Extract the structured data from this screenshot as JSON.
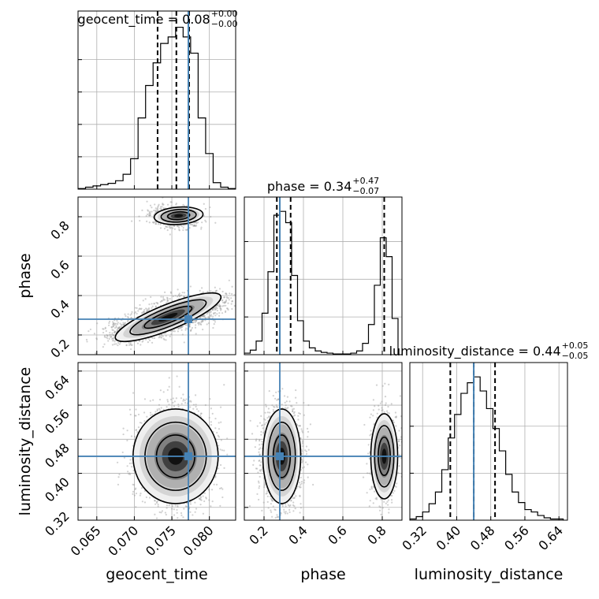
{
  "chart_data": {
    "type": "corner",
    "colors": {
      "truth": "#4682b4",
      "hist": "#000000",
      "grid": "#b0b0b0",
      "scatter": "#aaaaaa"
    },
    "truths": {
      "geocent_time": 0.0772,
      "phase": 0.28,
      "luminosity_distance": 0.44
    },
    "axis_labels": {
      "geocent_time": "geocent_time",
      "phase": "phase",
      "luminosity_distance": "luminosity_distance"
    },
    "ticks": {
      "geocent_time": {
        "values": [
          0.065,
          0.07,
          0.075,
          0.08
        ],
        "labels": [
          "0.065",
          "0.070",
          "0.075",
          "0.080"
        ]
      },
      "phase": {
        "values": [
          0.2,
          0.4,
          0.6,
          0.8
        ],
        "labels": [
          "0.2",
          "0.4",
          "0.6",
          "0.8"
        ]
      },
      "luminosity_distance": {
        "values": [
          0.32,
          0.4,
          0.48,
          0.56,
          0.64
        ],
        "labels": [
          "0.32",
          "0.40",
          "0.48",
          "0.56",
          "0.64"
        ]
      }
    },
    "ranges": {
      "geocent_time": [
        0.0625,
        0.0835
      ],
      "phase": [
        0.1,
        0.9
      ],
      "luminosity_distance": [
        0.29,
        0.66
      ]
    },
    "titles": [
      {
        "param": "geocent_time",
        "text": "geocent_time = 0.08",
        "sup": "+0.00",
        "sub": "−0.00"
      },
      {
        "param": "phase",
        "text": "phase = 0.34",
        "sup": "+0.47",
        "sub": "−0.07"
      },
      {
        "param": "luminosity_distance",
        "text": "luminosity_distance = 0.44",
        "sup": "+0.05",
        "sub": "−0.05"
      }
    ],
    "quantiles": {
      "geocent_time": [
        0.0731,
        0.0756,
        0.0773
      ],
      "phase": [
        0.265,
        0.335,
        0.81
      ],
      "luminosity_distance": [
        0.385,
        0.44,
        0.49
      ]
    },
    "histograms": {
      "geocent_time": {
        "edges": [
          0.0625,
          0.0635,
          0.0645,
          0.0655,
          0.0665,
          0.0675,
          0.0685,
          0.0695,
          0.0705,
          0.0715,
          0.0725,
          0.0735,
          0.0745,
          0.0755,
          0.0765,
          0.0775,
          0.0785,
          0.0795,
          0.0805,
          0.0815,
          0.0825,
          0.0835
        ],
        "counts": [
          1,
          3,
          5,
          7,
          9,
          13,
          23,
          47,
          110,
          160,
          195,
          225,
          235,
          250,
          235,
          210,
          110,
          55,
          10,
          3,
          1
        ]
      },
      "phase": {
        "edges": [
          0.1,
          0.13,
          0.16,
          0.19,
          0.22,
          0.25,
          0.28,
          0.31,
          0.34,
          0.37,
          0.4,
          0.43,
          0.46,
          0.49,
          0.52,
          0.55,
          0.58,
          0.61,
          0.64,
          0.67,
          0.7,
          0.73,
          0.76,
          0.79,
          0.82,
          0.85,
          0.88
        ],
        "counts": [
          2,
          6,
          18,
          55,
          110,
          185,
          190,
          175,
          105,
          45,
          18,
          9,
          5,
          3,
          2,
          1,
          1,
          1,
          2,
          5,
          15,
          40,
          92,
          155,
          130,
          48
        ]
      },
      "luminosity_distance": {
        "edges": [
          0.29,
          0.305,
          0.32,
          0.335,
          0.35,
          0.365,
          0.38,
          0.395,
          0.41,
          0.425,
          0.44,
          0.455,
          0.47,
          0.485,
          0.5,
          0.515,
          0.53,
          0.545,
          0.56,
          0.575,
          0.59,
          0.605,
          0.62,
          0.635,
          0.65
        ],
        "counts": [
          1,
          3,
          7,
          14,
          24,
          43,
          70,
          90,
          108,
          117,
          122,
          110,
          95,
          78,
          59,
          39,
          24,
          15,
          9,
          7,
          4,
          2,
          1,
          1
        ]
      }
    }
  }
}
